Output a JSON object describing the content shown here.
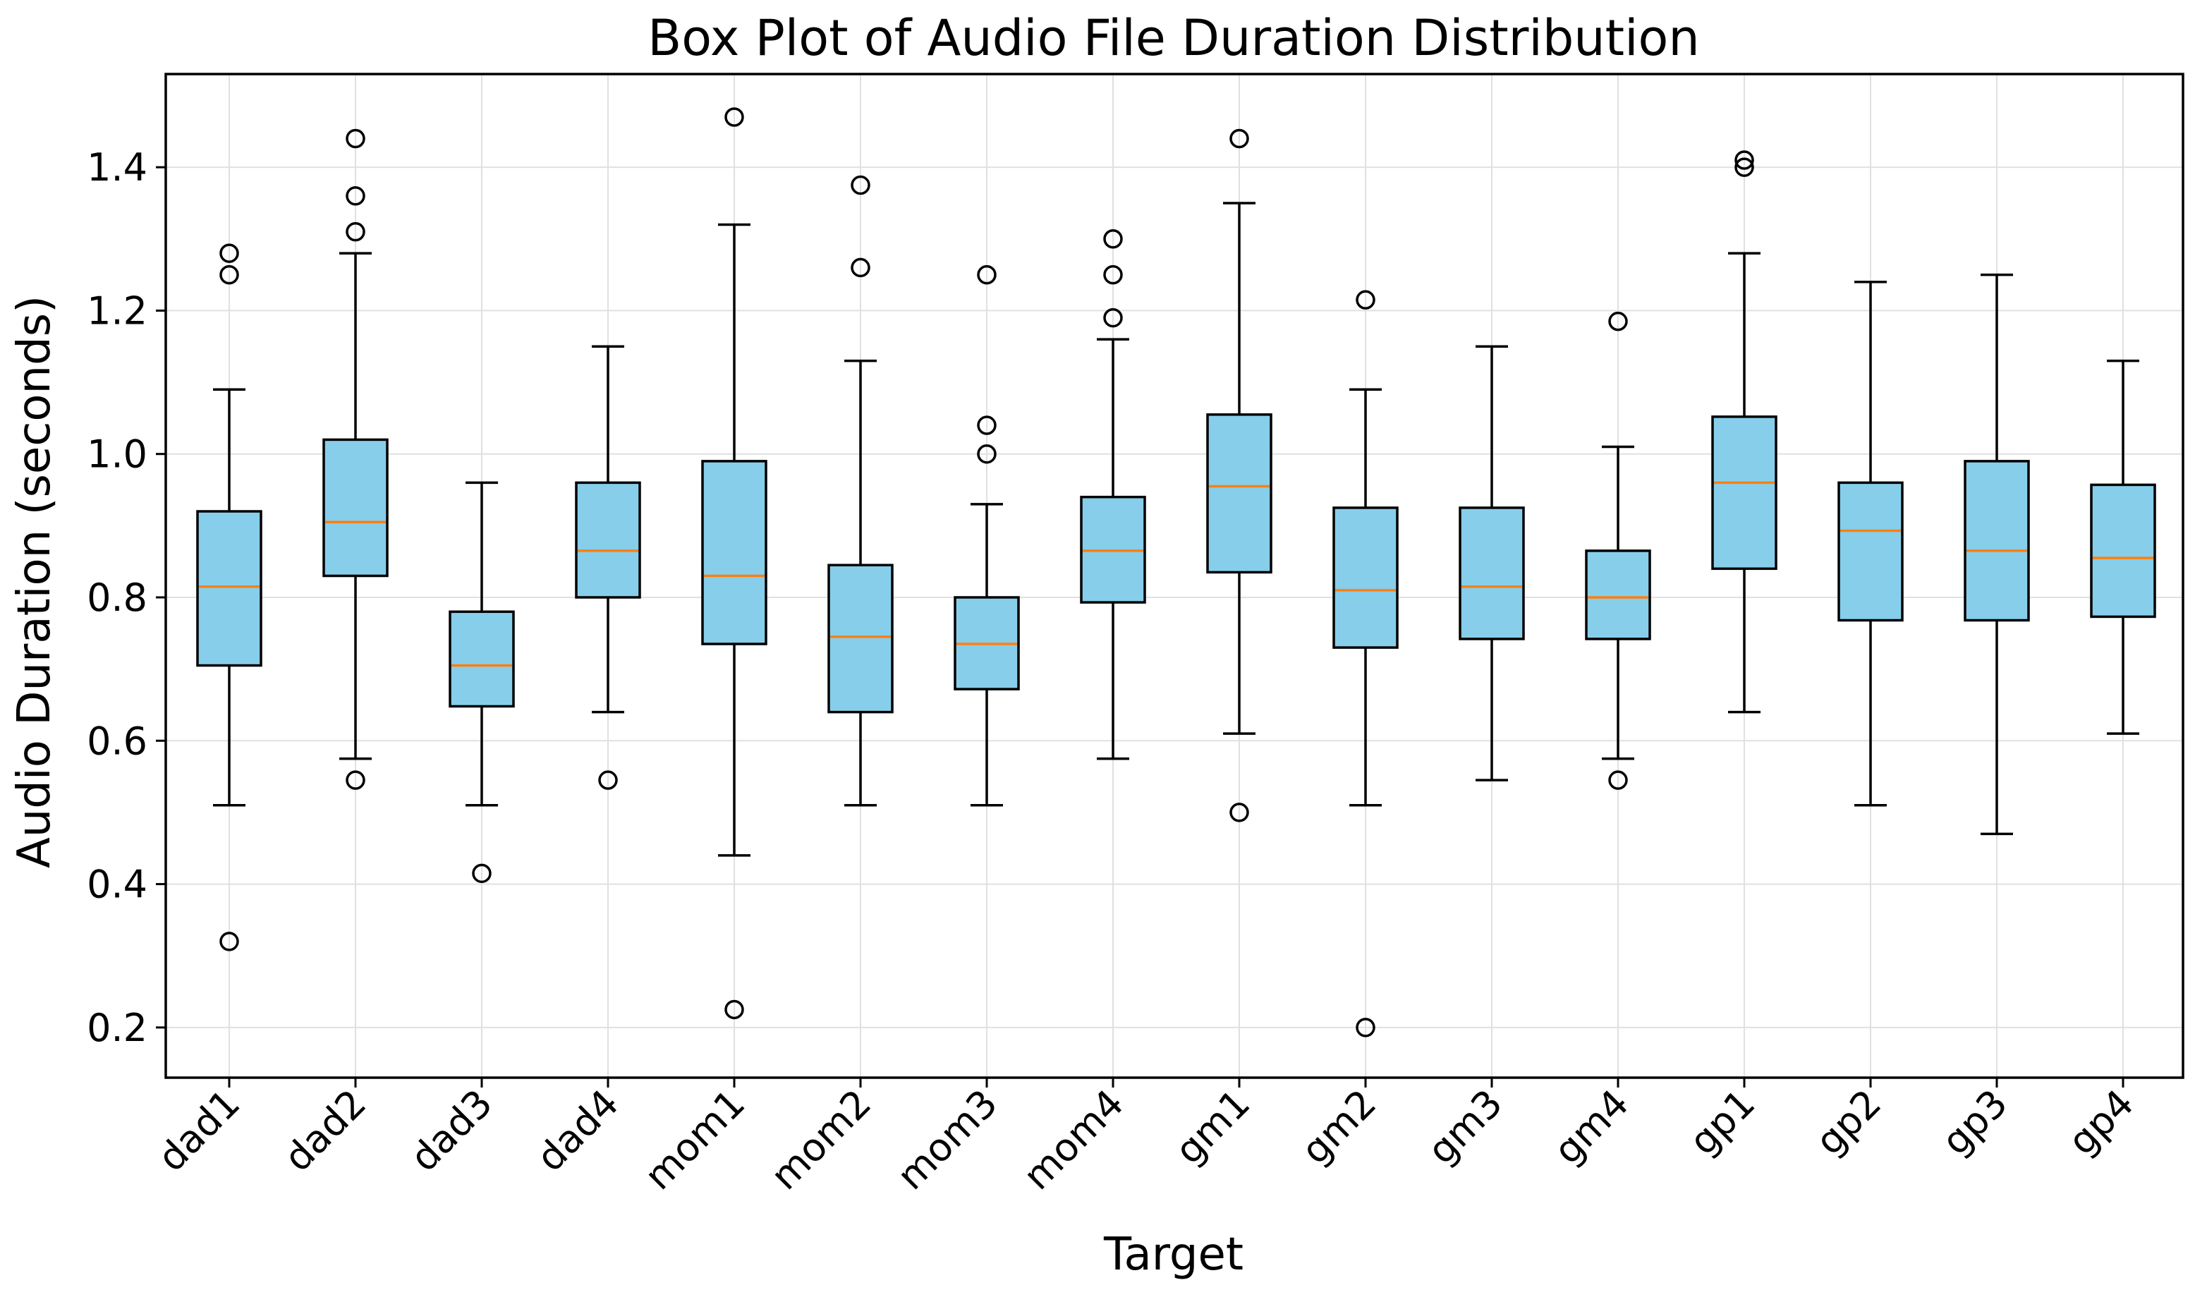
{
  "chart_data": {
    "type": "boxplot",
    "title": "Box Plot of Audio File Duration Distribution",
    "xlabel": "Target",
    "ylabel": "Audio Duration (seconds)",
    "ylim": [
      0.13,
      1.53
    ],
    "yticks": [
      0.2,
      0.4,
      0.6,
      0.8,
      1.0,
      1.2,
      1.4
    ],
    "ytick_labels": [
      "0.2",
      "0.4",
      "0.6",
      "0.8",
      "1.0",
      "1.2",
      "1.4"
    ],
    "grid": true,
    "colors": {
      "box_fill": "#87ceeb",
      "median": "#ff7f0e",
      "edge": "#000000",
      "grid": "#e0e0e0"
    },
    "boxes": [
      {
        "label": "dad1",
        "whislo": 0.51,
        "q1": 0.705,
        "med": 0.815,
        "q3": 0.92,
        "whishi": 1.09,
        "fliers": [
          1.28,
          1.25,
          0.32
        ]
      },
      {
        "label": "dad2",
        "whislo": 0.575,
        "q1": 0.83,
        "med": 0.905,
        "q3": 1.02,
        "whishi": 1.28,
        "fliers": [
          1.44,
          1.36,
          1.31,
          0.545
        ]
      },
      {
        "label": "dad3",
        "whislo": 0.51,
        "q1": 0.648,
        "med": 0.705,
        "q3": 0.78,
        "whishi": 0.96,
        "fliers": [
          0.415
        ]
      },
      {
        "label": "dad4",
        "whislo": 0.64,
        "q1": 0.8,
        "med": 0.865,
        "q3": 0.96,
        "whishi": 1.15,
        "fliers": [
          0.545
        ]
      },
      {
        "label": "mom1",
        "whislo": 0.44,
        "q1": 0.735,
        "med": 0.83,
        "q3": 0.99,
        "whishi": 1.32,
        "fliers": [
          1.47,
          0.225
        ]
      },
      {
        "label": "mom2",
        "whislo": 0.51,
        "q1": 0.64,
        "med": 0.745,
        "q3": 0.845,
        "whishi": 1.13,
        "fliers": [
          1.375,
          1.26
        ]
      },
      {
        "label": "mom3",
        "whislo": 0.51,
        "q1": 0.672,
        "med": 0.735,
        "q3": 0.8,
        "whishi": 0.93,
        "fliers": [
          1.25,
          1.04,
          1.0
        ]
      },
      {
        "label": "mom4",
        "whislo": 0.575,
        "q1": 0.793,
        "med": 0.865,
        "q3": 0.94,
        "whishi": 1.16,
        "fliers": [
          1.3,
          1.25,
          1.19
        ]
      },
      {
        "label": "gm1",
        "whislo": 0.61,
        "q1": 0.835,
        "med": 0.955,
        "q3": 1.055,
        "whishi": 1.35,
        "fliers": [
          1.44,
          0.5
        ]
      },
      {
        "label": "gm2",
        "whislo": 0.51,
        "q1": 0.73,
        "med": 0.81,
        "q3": 0.925,
        "whishi": 1.09,
        "fliers": [
          1.215,
          0.2
        ]
      },
      {
        "label": "gm3",
        "whislo": 0.545,
        "q1": 0.742,
        "med": 0.815,
        "q3": 0.925,
        "whishi": 1.15,
        "fliers": []
      },
      {
        "label": "gm4",
        "whislo": 0.575,
        "q1": 0.742,
        "med": 0.8,
        "q3": 0.865,
        "whishi": 1.01,
        "fliers": [
          1.185,
          0.545
        ]
      },
      {
        "label": "gp1",
        "whislo": 0.64,
        "q1": 0.84,
        "med": 0.96,
        "q3": 1.052,
        "whishi": 1.28,
        "fliers": [
          1.41,
          1.4
        ]
      },
      {
        "label": "gp2",
        "whislo": 0.51,
        "q1": 0.768,
        "med": 0.893,
        "q3": 0.96,
        "whishi": 1.24,
        "fliers": []
      },
      {
        "label": "gp3",
        "whislo": 0.47,
        "q1": 0.768,
        "med": 0.865,
        "q3": 0.99,
        "whishi": 1.25,
        "fliers": []
      },
      {
        "label": "gp4",
        "whislo": 0.61,
        "q1": 0.773,
        "med": 0.855,
        "q3": 0.957,
        "whishi": 1.13,
        "fliers": []
      }
    ]
  }
}
